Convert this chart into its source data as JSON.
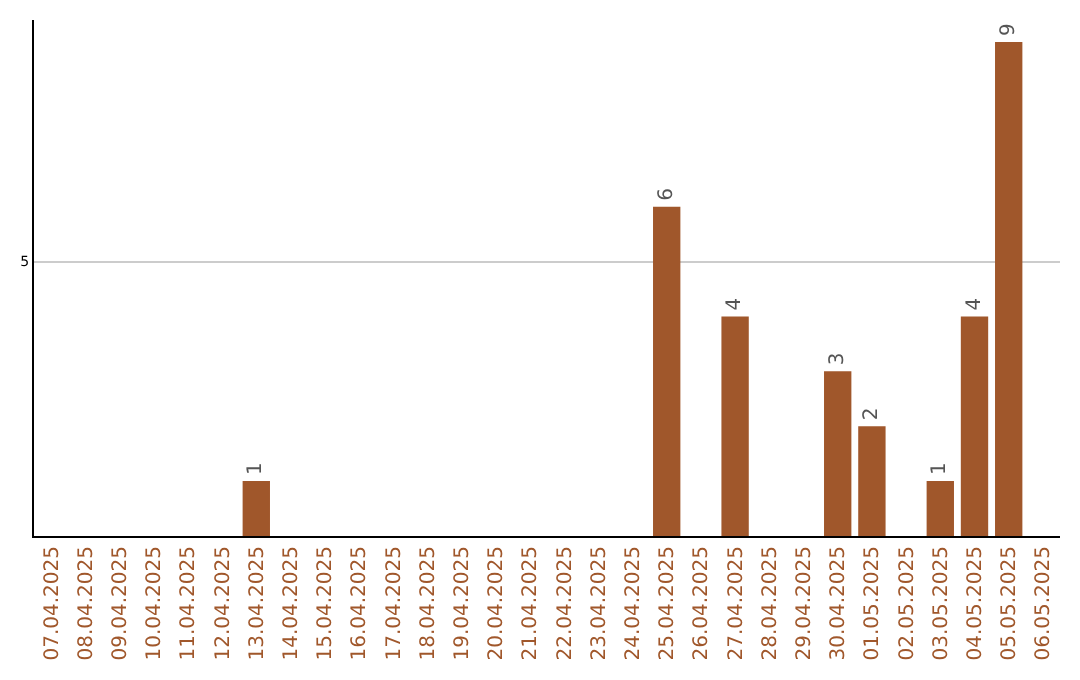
{
  "chart_data": {
    "type": "bar",
    "categories": [
      "07.04.2025",
      "08.04.2025",
      "09.04.2025",
      "10.04.2025",
      "11.04.2025",
      "12.04.2025",
      "13.04.2025",
      "14.04.2025",
      "15.04.2025",
      "16.04.2025",
      "17.04.2025",
      "18.04.2025",
      "19.04.2025",
      "20.04.2025",
      "21.04.2025",
      "22.04.2025",
      "23.04.2025",
      "24.04.2025",
      "25.04.2025",
      "26.04.2025",
      "27.04.2025",
      "28.04.2025",
      "29.04.2025",
      "30.04.2025",
      "01.05.2025",
      "02.05.2025",
      "03.05.2025",
      "04.05.2025",
      "05.05.2025",
      "06.05.2025"
    ],
    "values": [
      0,
      0,
      0,
      0,
      0,
      0,
      1,
      0,
      0,
      0,
      0,
      0,
      0,
      0,
      0,
      0,
      0,
      0,
      6,
      0,
      4,
      0,
      0,
      3,
      2,
      0,
      1,
      4,
      9,
      0
    ],
    "value_labels": [
      null,
      null,
      null,
      null,
      null,
      null,
      "1",
      null,
      null,
      null,
      null,
      null,
      null,
      null,
      null,
      null,
      null,
      null,
      "6",
      null,
      "4",
      null,
      null,
      "3",
      "2",
      null,
      "1",
      "4",
      "9",
      null
    ],
    "color": "#a0572b",
    "ylim": [
      0,
      9.4
    ],
    "yticks": [
      5
    ],
    "grid": "y"
  }
}
